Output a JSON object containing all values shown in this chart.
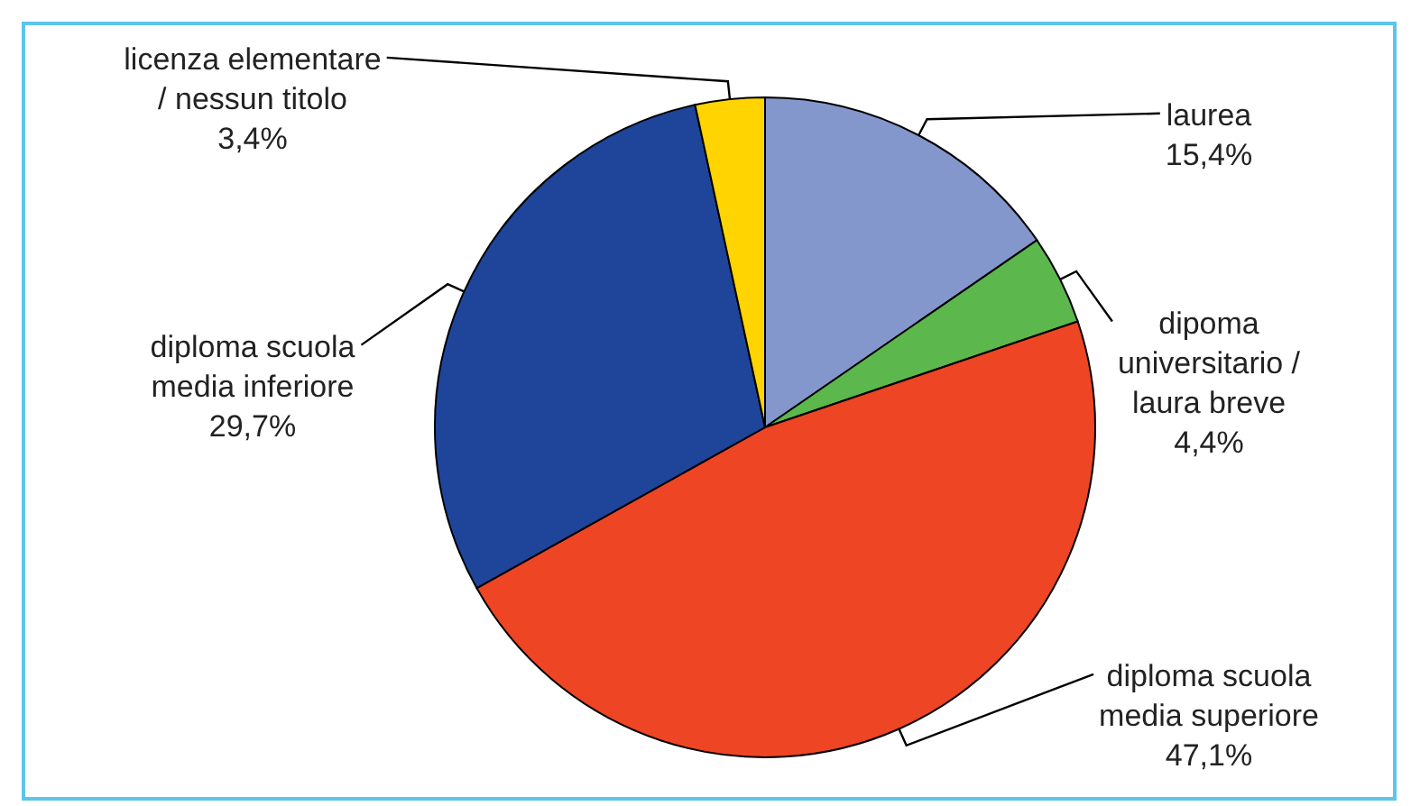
{
  "chart_data": {
    "type": "pie",
    "categories": [
      "laurea",
      "dipoma universitario / laura breve",
      "diploma scuola media superiore",
      "diploma scuola media inferiore",
      "licenza elementare / nessun titolo"
    ],
    "values": [
      15.4,
      4.4,
      47.1,
      29.7,
      3.4
    ],
    "value_labels": [
      "15,4%",
      "4,4%",
      "47,1%",
      "29,7%",
      "3,4%"
    ],
    "colors": [
      "#8497cc",
      "#5cb84c",
      "#ee4524",
      "#1f459b",
      "#ffd400"
    ],
    "legend": false
  }
}
